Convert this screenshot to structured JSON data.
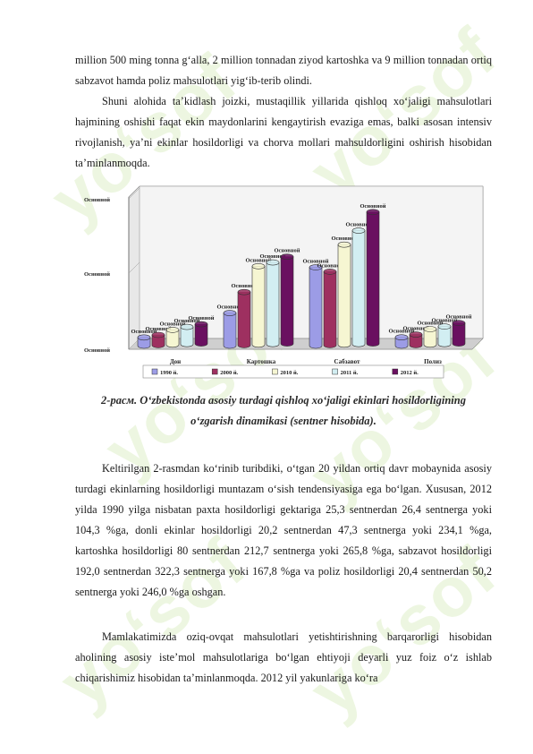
{
  "paragraphs": {
    "p1": "million 500 ming tonna g‘alla, 2 million tonnadan ziyod kartoshka va 9 million tonnadan ortiq sabzavot hamda poliz mahsulotlari yig‘ib-terib olindi.",
    "p2": "Shuni alohida ta’kidlash joizki, mustaqillik yillarida qishloq xo‘jaligi mahsulotlari hajmining oshishi faqat ekin maydonlarini kengaytirish evaziga emas, balki asosan intensiv rivojlanish, ya’ni ekinlar hosildorligi va chorva mollari mahsuldorligini oshirish hisobidan ta’minlanmoqda.",
    "p3": "Keltirilgan 2-rasmdan ko‘rinib turibdiki, o‘tgan 20 yildan ortiq davr mobaynida asosiy turdagi ekinlarning hosildorligi muntazam o‘sish tendensiyasiga ega bo‘lgan. Xususan, 2012 yilda 1990 yilga nisbatan paxta hosildorligi gektariga 25,3 sentnerdan 26,4 sentnerga yoki 104,3 %ga, donli ekinlar hosildorligi 20,2 sentnerdan 47,3 sentnerga yoki 234,1 %ga, kartoshka hosildorligi 80 sentnerdan 212,7 sentnerga yoki 265,8 %ga, sabzavot hosildorligi 192,0 sentnerdan 322,3 sentnerga yoki 167,8 %ga va poliz hosildorligi  20,4 sentnerdan 50,2 sentnerga yoki 246,0 %ga oshgan.",
    "p4": "Mamlakatimizda oziq-ovqat mahsulotlari yetishtirishning barqarorligi hisobidan aholining asosiy iste’mol mahsulotlariga bo‘lgan ehtiyoji deyarli yuz foiz o‘z ishlab chiqarishimiz hisobidan ta’minlanmoqda. 2012 yil yakunlariga ko‘ra"
  },
  "caption": {
    "line1": "2-расм. O‘zbekistonda asosiy turdagi qishloq xo‘jaligi ekinlari hosildorligining",
    "line2": "o‘zgarish dinamikasi (sentner hisobida)."
  },
  "watermark": "yo‘sof",
  "chart_data": {
    "type": "bar",
    "categories": [
      "Дон",
      "Картошка",
      "Сабзавот",
      "Полиз"
    ],
    "series": [
      {
        "name": "1990 й.",
        "color": "#9c9ce6",
        "values": [
          20.2,
          80.0,
          192.0,
          20.4
        ]
      },
      {
        "name": "2000 й.",
        "color": "#9e3060",
        "values": [
          25.0,
          130.0,
          180.0,
          26.0
        ]
      },
      {
        "name": "2010 й.",
        "color": "#f6f6d2",
        "values": [
          36.0,
          192.0,
          245.0,
          38.0
        ]
      },
      {
        "name": "2011 й.",
        "color": "#d2eef2",
        "values": [
          42.0,
          200.0,
          278.0,
          43.0
        ]
      },
      {
        "name": "2012 й.",
        "color": "#6a1060",
        "values": [
          47.3,
          212.7,
          322.3,
          50.2
        ]
      }
    ],
    "data_label": "Основной",
    "y_tick_labels": [
      "Основной",
      "Основной",
      "Основной"
    ],
    "ylim": [
      0,
      360
    ],
    "legend_position": "bottom",
    "grid": false
  }
}
